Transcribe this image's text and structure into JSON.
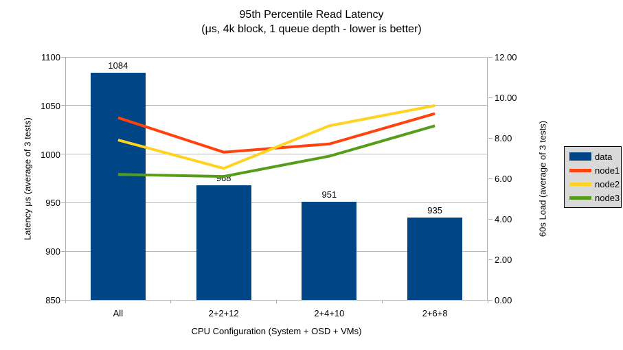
{
  "chart_data": {
    "type": "combo-bar-line",
    "title": "95th Percentile Read Latency",
    "subtitle": "(μs, 4k block, 1 queue depth - lower is better)",
    "categories": [
      "All",
      "2+2+12",
      "2+4+10",
      "2+6+8"
    ],
    "bar_series": {
      "name": "data",
      "axis": "left",
      "color": "#004586",
      "values": [
        1084,
        968,
        951,
        935
      ],
      "data_labels": [
        "1084",
        "968",
        "951",
        "935"
      ]
    },
    "line_series": [
      {
        "name": "node1",
        "axis": "right",
        "color": "#FF420E",
        "values": [
          9.0,
          7.3,
          7.7,
          9.2
        ]
      },
      {
        "name": "node2",
        "axis": "right",
        "color": "#FFD320",
        "values": [
          7.9,
          6.5,
          8.6,
          9.6
        ]
      },
      {
        "name": "node3",
        "axis": "right",
        "color": "#579D1C",
        "values": [
          6.2,
          6.1,
          7.1,
          8.6
        ]
      }
    ],
    "left_axis": {
      "label": "Latency μs (average of 3 tests)",
      "min": 850,
      "max": 1100,
      "step": 50,
      "decimals": 0
    },
    "right_axis": {
      "label": "60s Load (average of 3 tests)",
      "min": 0,
      "max": 12,
      "step": 2,
      "decimals": 2
    },
    "x_axis_label": "CPU Configuration (System + OSD + VMs)",
    "grid": "horizontal",
    "legend": {
      "position": "right",
      "entries": [
        {
          "label": "data",
          "color": "#004586",
          "swatch": "rect"
        },
        {
          "label": "node1",
          "color": "#FF420E",
          "swatch": "line"
        },
        {
          "label": "node2",
          "color": "#FFD320",
          "swatch": "line"
        },
        {
          "label": "node3",
          "color": "#579D1C",
          "swatch": "line"
        }
      ]
    }
  }
}
